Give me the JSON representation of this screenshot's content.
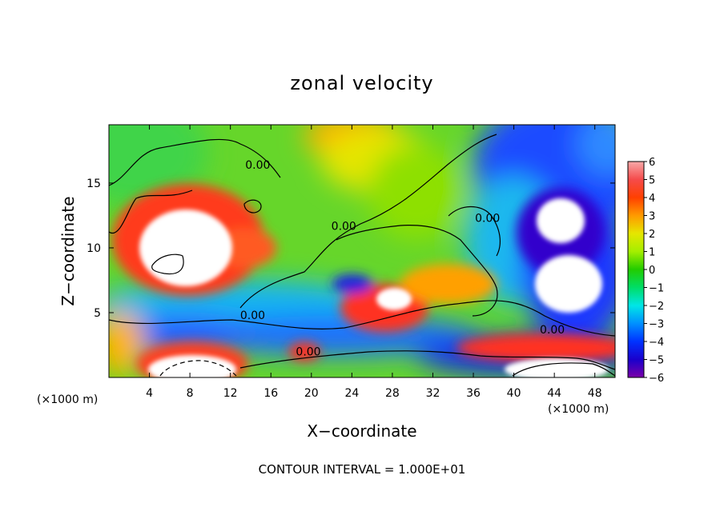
{
  "chart_data": {
    "type": "heatmap",
    "title": "zonal velocity",
    "xlabel": "X−coordinate",
    "ylabel": "Z−coordinate",
    "x_units": "(×1000 m)",
    "y_units": "(×1000 m)",
    "xlim": [
      0,
      50
    ],
    "ylim": [
      0,
      19.5
    ],
    "x_ticks": [
      4,
      8,
      12,
      16,
      20,
      24,
      28,
      32,
      36,
      40,
      44,
      48
    ],
    "y_ticks": [
      5,
      10,
      15
    ],
    "colorbar": {
      "ticks": [
        6,
        5,
        4,
        3,
        2,
        1,
        0,
        "−1",
        "−2",
        "−3",
        "−4",
        "−5",
        "−6"
      ],
      "range": [
        -6,
        6
      ],
      "out_of_range_color": "#ffffff"
    },
    "contour_labels": [
      {
        "text": "0.00",
        "x": 14.7,
        "z": 16.1
      },
      {
        "text": "0.00",
        "x": 23.2,
        "z": 11.4
      },
      {
        "text": "0.00",
        "x": 37.4,
        "z": 12.0
      },
      {
        "text": "0.00",
        "x": 14.2,
        "z": 4.5
      },
      {
        "text": "0.00",
        "x": 19.7,
        "z": 1.7
      },
      {
        "text": "0.00",
        "x": 43.8,
        "z": 3.4
      }
    ],
    "regions": [
      {
        "name": "upper-jet",
        "value": 3.5,
        "x": 24.5,
        "z": 19.0,
        "rx": 4.0,
        "rz": 2.0
      },
      {
        "name": "left-core",
        "value": 7.0,
        "x": 7.8,
        "z": 9.5,
        "rx": 4.4,
        "rz": 3.4
      },
      {
        "name": "center-core",
        "value": 6.5,
        "x": 27.5,
        "z": 6.0,
        "rx": 2.2,
        "rz": 1.6
      },
      {
        "name": "right-upper-core",
        "value": -6.5,
        "x": 44.3,
        "z": 12.3,
        "rx": 2.3,
        "rz": 2.1
      },
      {
        "name": "right-lower-core",
        "value": -6.5,
        "x": 45.0,
        "z": 7.0,
        "rx": 3.3,
        "rz": 2.8
      },
      {
        "name": "bottom-left-core",
        "value": 8.0,
        "x": 6.5,
        "z": 1.2,
        "rx": 5.0,
        "rz": 1.5
      },
      {
        "name": "bottom-right-core",
        "value": 8.0,
        "x": 45.0,
        "z": 1.0,
        "rx": 5.5,
        "rz": 1.4
      }
    ]
  },
  "footer": "CONTOUR INTERVAL = 1.000E+01"
}
